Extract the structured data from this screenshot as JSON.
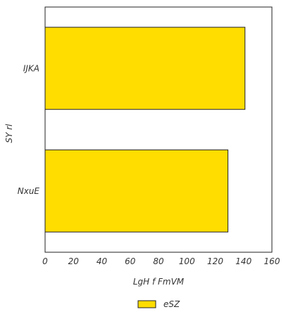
{
  "chart_data": {
    "type": "bar",
    "orientation": "horizontal",
    "categories": [
      "IJKA",
      "NxuE"
    ],
    "series": [
      {
        "name": "eSZ",
        "values": [
          141,
          129
        ],
        "color": "#FFDD00"
      }
    ],
    "xlabel": "LgH f FmVM",
    "ylabel": "SY rl",
    "xlim": [
      0,
      160
    ],
    "xticks": [
      0,
      20,
      40,
      60,
      80,
      100,
      120,
      140,
      160
    ],
    "grid": false,
    "legend_placement": "bottom-center"
  }
}
